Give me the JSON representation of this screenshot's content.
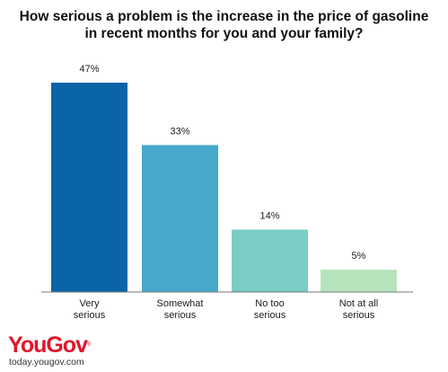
{
  "chart_data": {
    "type": "bar",
    "title": "How serious a problem is the increase in the price of gasoline\nin recent months for you and your family?",
    "categories": [
      "Very\nserious",
      "Somewhat\nserious",
      "No too\nserious",
      "Not at all\nserious"
    ],
    "values": [
      47,
      33,
      14,
      5
    ],
    "value_labels": [
      "47%",
      "33%",
      "14%",
      "5%"
    ],
    "colors": [
      "#0b64a8",
      "#46a8cb",
      "#79cdc5",
      "#b5e4bc"
    ],
    "ylim": [
      0,
      50
    ],
    "grid": false,
    "legend": "none"
  },
  "footer": {
    "logo": "YouGov",
    "logo_mark": "®",
    "site": "today.yougov.com"
  }
}
